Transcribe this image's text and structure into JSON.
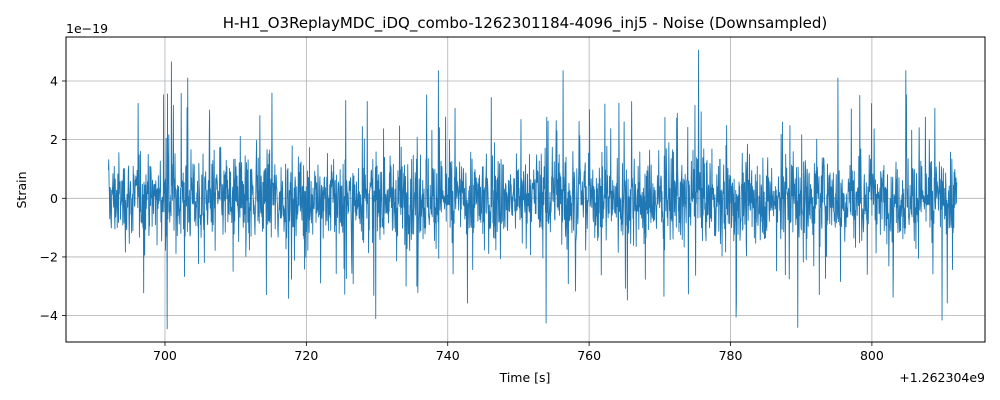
{
  "chart_data": {
    "type": "line",
    "title": "H-H1_O3ReplayMDC_iDQ_combo-1262301184-4096_inj5 - Noise (Downsampled)",
    "xlabel": "Time [s]",
    "ylabel": "Strain",
    "x_offset_label": "+1.262304e9",
    "y_scale_label": "1e−19",
    "xlim": [
      686,
      816
    ],
    "ylim": [
      -4.9,
      5.5
    ],
    "x_ticks": [
      700,
      720,
      740,
      760,
      780,
      800
    ],
    "x_tick_labels": [
      "700",
      "720",
      "740",
      "760",
      "780",
      "800"
    ],
    "y_ticks": [
      -4,
      -2,
      0,
      2,
      4
    ],
    "y_tick_labels": [
      "−4",
      "−2",
      "0",
      "2",
      "4"
    ],
    "grid": true,
    "color": "#1f77b4",
    "series": [
      {
        "x_range": [
          692,
          812
        ],
        "envelope": {
          "typical_abs": 1.2,
          "frequent_peak_abs": 2.8,
          "max": 5.05,
          "min": -4.45
        },
        "peaks": [
          {
            "x": 700.9,
            "y": 4.65
          },
          {
            "x": 700.3,
            "y": -4.45
          },
          {
            "x": 703.2,
            "y": 4.1
          },
          {
            "x": 729.8,
            "y": -4.1
          },
          {
            "x": 738.7,
            "y": 4.35
          },
          {
            "x": 753.9,
            "y": -4.25
          },
          {
            "x": 756.3,
            "y": 4.35
          },
          {
            "x": 775.5,
            "y": 5.05
          },
          {
            "x": 780.8,
            "y": -4.05
          },
          {
            "x": 789.5,
            "y": -4.4
          },
          {
            "x": 795.2,
            "y": 4.1
          },
          {
            "x": 804.8,
            "y": 4.35
          },
          {
            "x": 809.9,
            "y": -4.15
          }
        ]
      }
    ]
  }
}
